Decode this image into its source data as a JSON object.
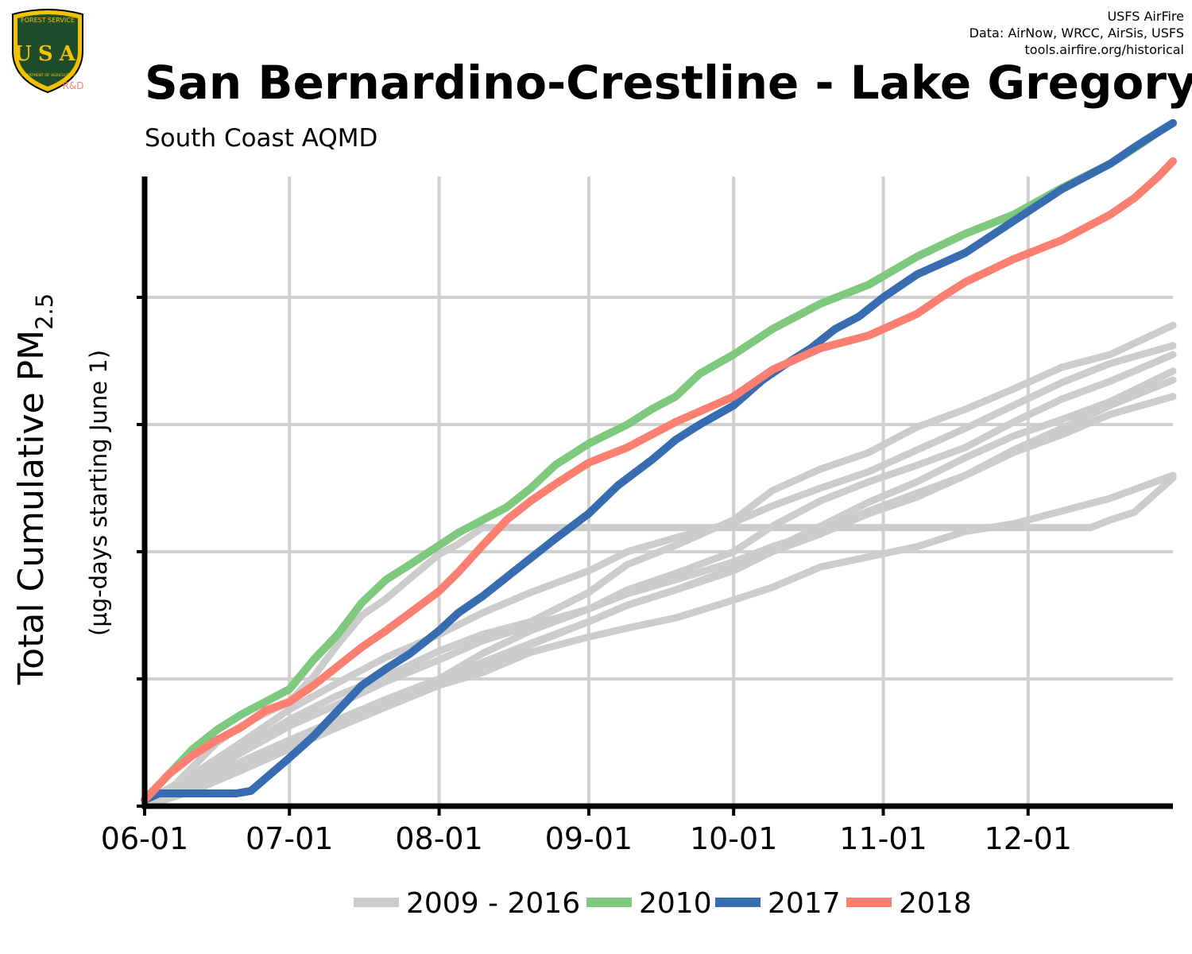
{
  "credits": {
    "line1": "USFS AirFire",
    "line2": "Data: AirNow, WRCC, AirSis, USFS",
    "line3": "tools.airfire.org/historical"
  },
  "logo": {
    "top_text": "FOREST SERVICE",
    "letters": "USA",
    "bottom_text": "DEPARTMENT OF AGRICULTURE",
    "badge": "R&D"
  },
  "chart_data": {
    "type": "line",
    "title": "San Bernardino-Crestline - Lake Gregory",
    "subtitle": "South Coast AQMD",
    "ylabel": "Total Cumulative PM",
    "ylabel_sub": "2.5",
    "ylabel2": "(µg-days starting June 1)",
    "xlabel": "",
    "x_ticks": [
      "06-01",
      "07-01",
      "08-01",
      "09-01",
      "10-01",
      "11-01",
      "12-01"
    ],
    "x_tick_days": [
      0,
      30,
      61,
      92,
      122,
      153,
      183
    ],
    "xlim": [
      0,
      213
    ],
    "ylim": [
      0,
      4.95
    ],
    "y_gridlines": [
      0,
      1,
      2,
      3,
      4
    ],
    "y_tick_labels_shown": false,
    "grid": true,
    "legend_position": "bottom",
    "colors": {
      "grey": "#cccccc",
      "green": "#7fc97f",
      "blue": "#386cb0",
      "red": "#fb8072",
      "axis": "#000000"
    },
    "series": [
      {
        "name": "2009 - 2016",
        "group": "background",
        "color": "#cccccc",
        "x": [
          0,
          5,
          10,
          15,
          20,
          25,
          30,
          35,
          40,
          45,
          50,
          55,
          61,
          65,
          70,
          75,
          80,
          90,
          100,
          110,
          120,
          130,
          140,
          150,
          160,
          170,
          180,
          190,
          196,
          200,
          205,
          213
        ],
        "y": [
          0.02,
          0.12,
          0.31,
          0.5,
          0.63,
          0.73,
          0.82,
          1.02,
          1.27,
          1.5,
          1.63,
          1.79,
          1.98,
          2.06,
          2.19,
          2.19,
          2.19,
          2.19,
          2.19,
          2.19,
          2.19,
          2.19,
          2.19,
          2.19,
          2.19,
          2.19,
          2.19,
          2.19,
          2.19,
          2.25,
          2.31,
          2.58
        ]
      },
      {
        "name": "",
        "group": "background",
        "color": "#cccccc",
        "x": [
          0,
          10,
          20,
          30,
          40,
          50,
          61,
          70,
          80,
          92,
          100,
          110,
          122,
          130,
          140,
          150,
          160,
          170,
          180,
          190,
          200,
          213
        ],
        "y": [
          0.02,
          0.2,
          0.42,
          0.63,
          0.8,
          0.98,
          1.15,
          1.3,
          1.42,
          1.55,
          1.67,
          1.78,
          1.92,
          2.04,
          2.16,
          2.32,
          2.46,
          2.6,
          2.8,
          2.97,
          3.15,
          3.35
        ]
      },
      {
        "name": "",
        "group": "background",
        "color": "#cccccc",
        "x": [
          0,
          10,
          20,
          30,
          40,
          50,
          61,
          70,
          80,
          92,
          100,
          110,
          122,
          130,
          140,
          150,
          160,
          170,
          180,
          190,
          200,
          213
        ],
        "y": [
          0.0,
          0.15,
          0.32,
          0.5,
          0.66,
          0.81,
          0.97,
          1.13,
          1.28,
          1.45,
          1.58,
          1.7,
          1.87,
          2.02,
          2.2,
          2.39,
          2.55,
          2.74,
          2.91,
          3.04,
          3.18,
          3.42
        ]
      },
      {
        "name": "",
        "group": "background",
        "color": "#cccccc",
        "x": [
          0,
          10,
          20,
          30,
          40,
          50,
          61,
          70,
          80,
          92,
          100,
          110,
          122,
          130,
          140,
          150,
          160,
          170,
          180,
          190,
          200,
          213
        ],
        "y": [
          0.03,
          0.25,
          0.5,
          0.76,
          0.97,
          1.17,
          1.35,
          1.52,
          1.68,
          1.85,
          2.0,
          2.11,
          2.23,
          2.36,
          2.5,
          2.63,
          2.8,
          2.97,
          3.15,
          3.33,
          3.48,
          3.62
        ]
      },
      {
        "name": "",
        "group": "background",
        "color": "#cccccc",
        "x": [
          0,
          10,
          20,
          30,
          40,
          50,
          61,
          70,
          80,
          92,
          100,
          110,
          122,
          130,
          140,
          150,
          160,
          170,
          180,
          190,
          200,
          213
        ],
        "y": [
          0.02,
          0.22,
          0.45,
          0.68,
          0.87,
          1.02,
          1.22,
          1.35,
          1.45,
          1.68,
          1.9,
          2.05,
          2.25,
          2.48,
          2.65,
          2.78,
          2.98,
          3.12,
          3.28,
          3.45,
          3.55,
          3.78
        ]
      },
      {
        "name": "",
        "group": "background",
        "color": "#cccccc",
        "x": [
          0,
          10,
          20,
          30,
          40,
          50,
          61,
          70,
          80,
          92,
          100,
          110,
          122,
          130,
          140,
          150,
          160,
          170,
          180,
          190,
          200,
          213
        ],
        "y": [
          0.01,
          0.14,
          0.28,
          0.48,
          0.65,
          0.78,
          0.95,
          1.05,
          1.21,
          1.33,
          1.4,
          1.48,
          1.62,
          1.72,
          1.88,
          1.96,
          2.04,
          2.16,
          2.22,
          2.32,
          2.42,
          2.6
        ]
      },
      {
        "name": "",
        "group": "background",
        "color": "#cccccc",
        "x": [
          0,
          10,
          20,
          30,
          40,
          50,
          61,
          70,
          80,
          92,
          100,
          110,
          122,
          130,
          140,
          150,
          160,
          170,
          180,
          190,
          200,
          213
        ],
        "y": [
          0.02,
          0.18,
          0.35,
          0.52,
          0.68,
          0.84,
          1.0,
          1.2,
          1.38,
          1.55,
          1.7,
          1.83,
          2.0,
          2.2,
          2.4,
          2.55,
          2.68,
          2.82,
          3.02,
          3.2,
          3.34,
          3.55
        ]
      },
      {
        "name": "",
        "group": "background",
        "color": "#cccccc",
        "x": [
          0,
          10,
          20,
          30,
          40,
          50,
          61,
          70,
          80,
          92,
          100,
          110,
          122,
          130,
          140,
          150,
          160,
          170,
          180,
          190,
          200,
          213
        ],
        "y": [
          0.0,
          0.12,
          0.28,
          0.45,
          0.62,
          0.78,
          0.95,
          1.1,
          1.27,
          1.45,
          1.58,
          1.7,
          1.85,
          2.0,
          2.14,
          2.3,
          2.43,
          2.6,
          2.78,
          2.92,
          3.08,
          3.22
        ]
      },
      {
        "name": "2010",
        "group": "highlight",
        "color": "#7fc97f",
        "x": [
          0,
          5,
          10,
          15,
          20,
          25,
          30,
          35,
          40,
          45,
          50,
          55,
          61,
          65,
          70,
          75,
          80,
          85,
          92,
          100,
          105,
          110,
          115,
          122,
          130,
          140,
          150,
          160,
          170,
          180,
          190,
          200,
          205,
          210,
          213
        ],
        "y": [
          0.05,
          0.25,
          0.45,
          0.6,
          0.72,
          0.82,
          0.92,
          1.15,
          1.35,
          1.6,
          1.78,
          1.9,
          2.05,
          2.15,
          2.25,
          2.35,
          2.5,
          2.68,
          2.85,
          3.0,
          3.12,
          3.22,
          3.4,
          3.55,
          3.75,
          3.95,
          4.1,
          4.32,
          4.5,
          4.65,
          4.86,
          5.05,
          5.17,
          5.3,
          5.37
        ]
      },
      {
        "name": "2017",
        "group": "highlight",
        "color": "#386cb0",
        "x": [
          0,
          3,
          8,
          14,
          19,
          22,
          26,
          30,
          35,
          40,
          45,
          50,
          55,
          61,
          65,
          70,
          75,
          80,
          85,
          92,
          98,
          105,
          110,
          115,
          122,
          128,
          133,
          138,
          143,
          148,
          153,
          160,
          170,
          180,
          190,
          200,
          205,
          210,
          213
        ],
        "y": [
          0.05,
          0.1,
          0.1,
          0.1,
          0.1,
          0.12,
          0.25,
          0.38,
          0.55,
          0.75,
          0.95,
          1.08,
          1.2,
          1.38,
          1.52,
          1.65,
          1.8,
          1.95,
          2.1,
          2.3,
          2.52,
          2.72,
          2.88,
          3.0,
          3.15,
          3.35,
          3.48,
          3.6,
          3.75,
          3.85,
          4.0,
          4.18,
          4.35,
          4.6,
          4.85,
          5.05,
          5.18,
          5.3,
          5.37
        ]
      },
      {
        "name": "2018",
        "group": "highlight",
        "color": "#fb8072",
        "x": [
          0,
          5,
          10,
          15,
          20,
          25,
          30,
          35,
          40,
          45,
          50,
          55,
          61,
          65,
          70,
          75,
          80,
          85,
          92,
          100,
          110,
          122,
          130,
          140,
          150,
          160,
          165,
          170,
          180,
          190,
          200,
          205,
          210,
          213
        ],
        "y": [
          0.05,
          0.25,
          0.4,
          0.52,
          0.62,
          0.75,
          0.82,
          0.95,
          1.1,
          1.25,
          1.38,
          1.52,
          1.69,
          1.84,
          2.05,
          2.25,
          2.4,
          2.53,
          2.7,
          2.82,
          3.02,
          3.22,
          3.43,
          3.6,
          3.7,
          3.87,
          4.0,
          4.12,
          4.3,
          4.45,
          4.65,
          4.78,
          4.95,
          5.07
        ]
      }
    ]
  },
  "legend": [
    {
      "label": "2009 - 2016",
      "color": "#cccccc"
    },
    {
      "label": "2010",
      "color": "#7fc97f"
    },
    {
      "label": "2017",
      "color": "#386cb0"
    },
    {
      "label": "2018",
      "color": "#fb8072"
    }
  ]
}
